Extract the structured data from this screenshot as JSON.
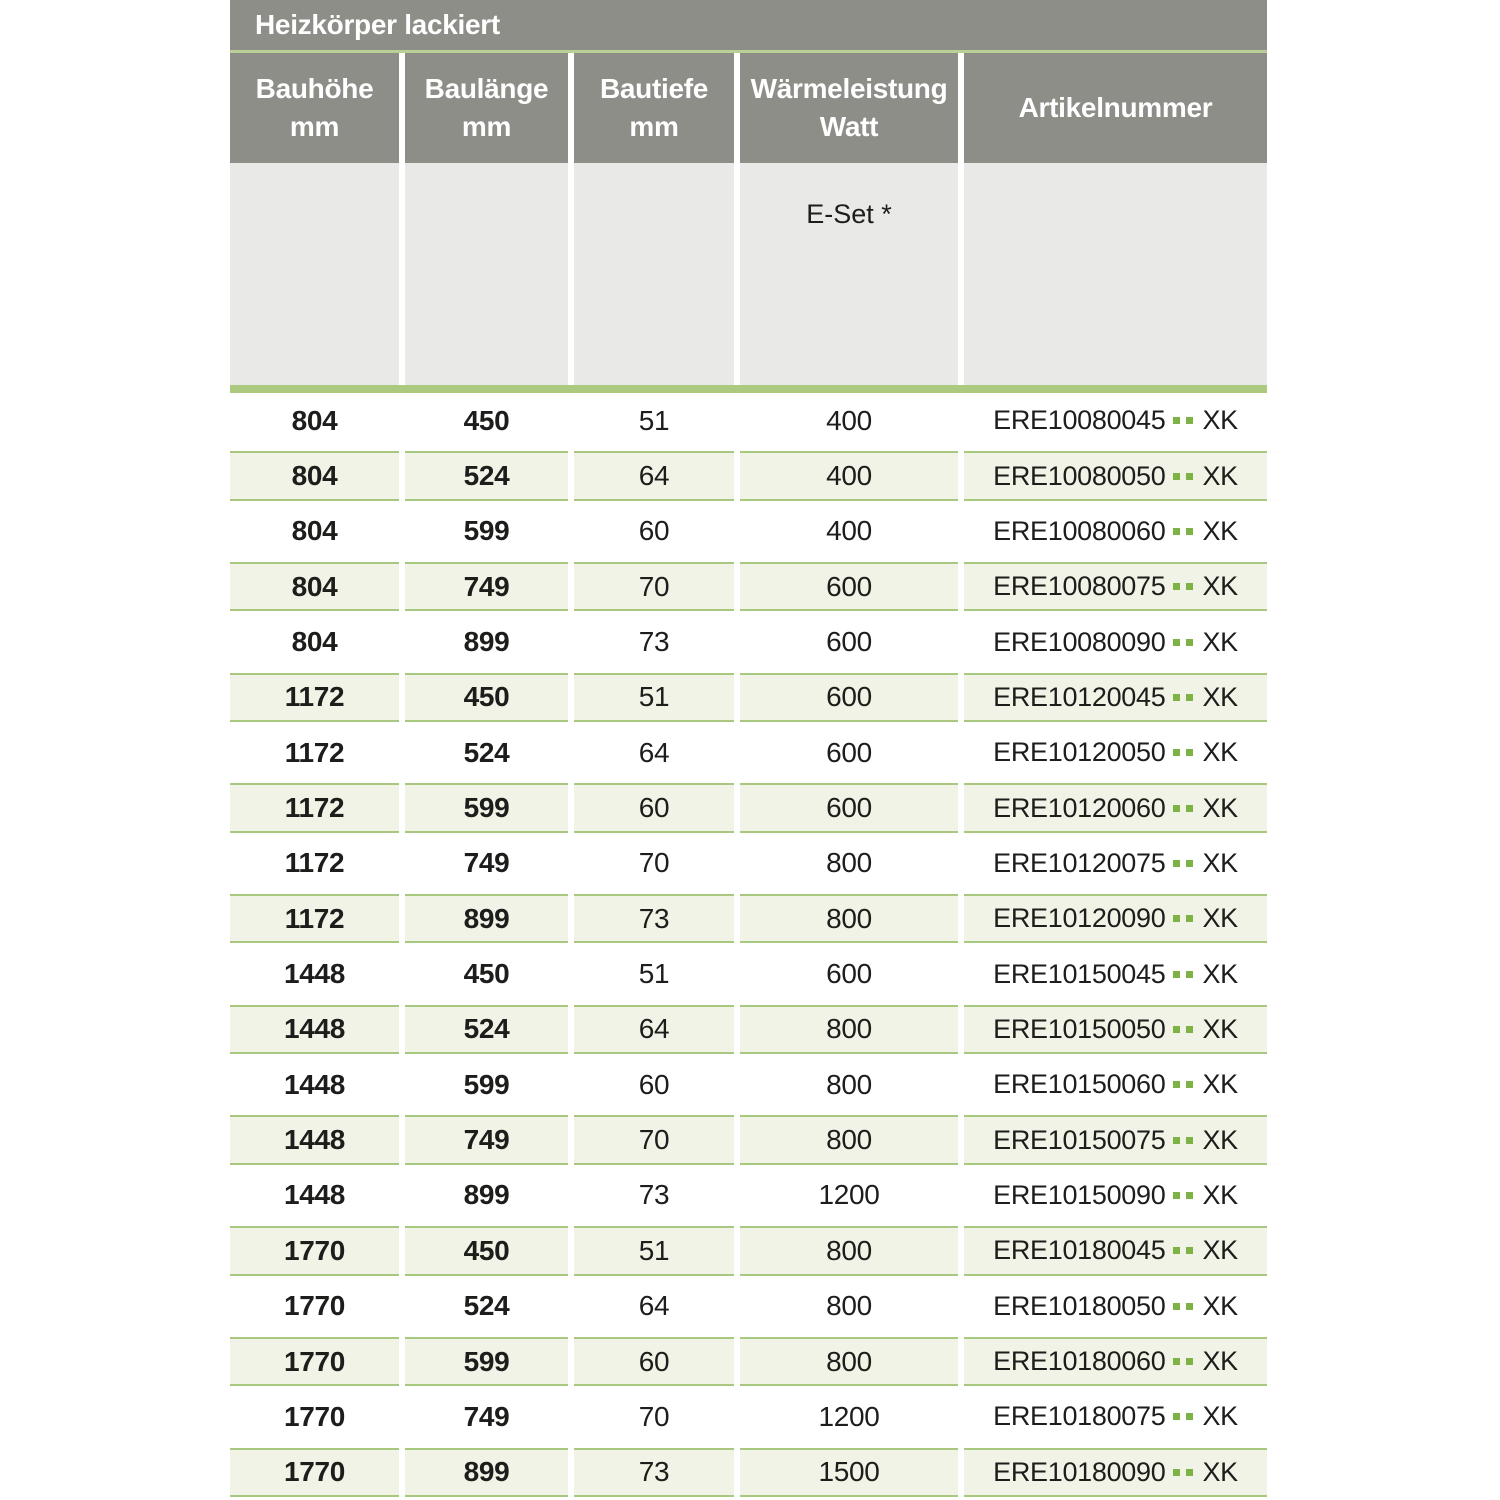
{
  "title": "Heizkörper lackiert",
  "columns": [
    {
      "line1": "Bauhöhe",
      "line2": "mm"
    },
    {
      "line1": "Baulänge",
      "line2": "mm"
    },
    {
      "line1": "Bautiefe",
      "line2": "mm"
    },
    {
      "line1": "Wärmeleistung",
      "line2": "Watt"
    },
    {
      "line1": "Artikelnummer",
      "line2": ""
    }
  ],
  "subheader": {
    "eset_label": "E-Set *"
  },
  "artikel_separator": "..",
  "colors": {
    "header_gray": "#8d8e88",
    "header_text": "#ffffff",
    "thin_green_line": "#b9cf96",
    "subheader_gray": "#e9e9e8",
    "green_bar": "#abca80",
    "row_tint": "#f0f3e6",
    "row_border": "#a9c87f",
    "dot_green": "#7db245",
    "body_text": "#1d1d1b"
  },
  "rows": [
    {
      "bauhoehe": "804",
      "baulaenge": "450",
      "bautiefe": "51",
      "watt": "400",
      "artikel_prefix": "ERE10080045",
      "artikel_suffix": "XK"
    },
    {
      "bauhoehe": "804",
      "baulaenge": "524",
      "bautiefe": "64",
      "watt": "400",
      "artikel_prefix": "ERE10080050",
      "artikel_suffix": "XK"
    },
    {
      "bauhoehe": "804",
      "baulaenge": "599",
      "bautiefe": "60",
      "watt": "400",
      "artikel_prefix": "ERE10080060",
      "artikel_suffix": "XK"
    },
    {
      "bauhoehe": "804",
      "baulaenge": "749",
      "bautiefe": "70",
      "watt": "600",
      "artikel_prefix": "ERE10080075",
      "artikel_suffix": "XK"
    },
    {
      "bauhoehe": "804",
      "baulaenge": "899",
      "bautiefe": "73",
      "watt": "600",
      "artikel_prefix": "ERE10080090",
      "artikel_suffix": "XK"
    },
    {
      "bauhoehe": "1172",
      "baulaenge": "450",
      "bautiefe": "51",
      "watt": "600",
      "artikel_prefix": "ERE10120045",
      "artikel_suffix": "XK"
    },
    {
      "bauhoehe": "1172",
      "baulaenge": "524",
      "bautiefe": "64",
      "watt": "600",
      "artikel_prefix": "ERE10120050",
      "artikel_suffix": "XK"
    },
    {
      "bauhoehe": "1172",
      "baulaenge": "599",
      "bautiefe": "60",
      "watt": "600",
      "artikel_prefix": "ERE10120060",
      "artikel_suffix": "XK"
    },
    {
      "bauhoehe": "1172",
      "baulaenge": "749",
      "bautiefe": "70",
      "watt": "800",
      "artikel_prefix": "ERE10120075",
      "artikel_suffix": "XK"
    },
    {
      "bauhoehe": "1172",
      "baulaenge": "899",
      "bautiefe": "73",
      "watt": "800",
      "artikel_prefix": "ERE10120090",
      "artikel_suffix": "XK"
    },
    {
      "bauhoehe": "1448",
      "baulaenge": "450",
      "bautiefe": "51",
      "watt": "600",
      "artikel_prefix": "ERE10150045",
      "artikel_suffix": "XK"
    },
    {
      "bauhoehe": "1448",
      "baulaenge": "524",
      "bautiefe": "64",
      "watt": "800",
      "artikel_prefix": "ERE10150050",
      "artikel_suffix": "XK"
    },
    {
      "bauhoehe": "1448",
      "baulaenge": "599",
      "bautiefe": "60",
      "watt": "800",
      "artikel_prefix": "ERE10150060",
      "artikel_suffix": "XK"
    },
    {
      "bauhoehe": "1448",
      "baulaenge": "749",
      "bautiefe": "70",
      "watt": "800",
      "artikel_prefix": "ERE10150075",
      "artikel_suffix": "XK"
    },
    {
      "bauhoehe": "1448",
      "baulaenge": "899",
      "bautiefe": "73",
      "watt": "1200",
      "artikel_prefix": "ERE10150090",
      "artikel_suffix": "XK"
    },
    {
      "bauhoehe": "1770",
      "baulaenge": "450",
      "bautiefe": "51",
      "watt": "800",
      "artikel_prefix": "ERE10180045",
      "artikel_suffix": "XK"
    },
    {
      "bauhoehe": "1770",
      "baulaenge": "524",
      "bautiefe": "64",
      "watt": "800",
      "artikel_prefix": "ERE10180050",
      "artikel_suffix": "XK"
    },
    {
      "bauhoehe": "1770",
      "baulaenge": "599",
      "bautiefe": "60",
      "watt": "800",
      "artikel_prefix": "ERE10180060",
      "artikel_suffix": "XK"
    },
    {
      "bauhoehe": "1770",
      "baulaenge": "749",
      "bautiefe": "70",
      "watt": "1200",
      "artikel_prefix": "ERE10180075",
      "artikel_suffix": "XK"
    },
    {
      "bauhoehe": "1770",
      "baulaenge": "899",
      "bautiefe": "73",
      "watt": "1500",
      "artikel_prefix": "ERE10180090",
      "artikel_suffix": "XK"
    }
  ]
}
